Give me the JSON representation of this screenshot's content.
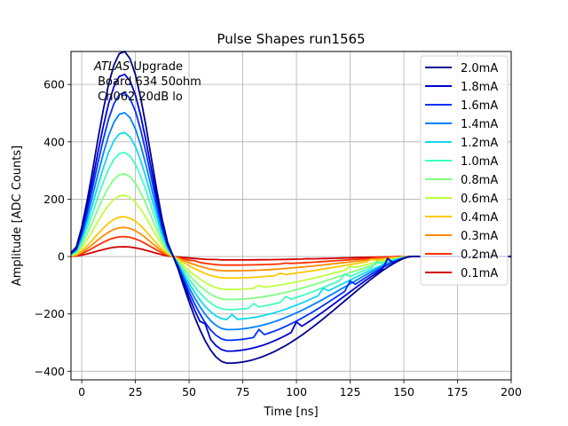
{
  "chart_data": {
    "type": "line",
    "title": "Pulse Shapes run1565",
    "xlabel": "Time [ns]",
    "ylabel": "Amplitude [ADC Counts]",
    "xlim": [
      -5,
      200
    ],
    "ylim": [
      -430,
      715
    ],
    "xticks": [
      0,
      25,
      50,
      75,
      100,
      125,
      150,
      175,
      200
    ],
    "yticks": [
      -400,
      -200,
      0,
      200,
      400,
      600
    ],
    "xtick_labels": [
      "0",
      "25",
      "50",
      "75",
      "100",
      "125",
      "150",
      "175",
      "200"
    ],
    "ytick_labels": [
      "−400",
      "−200",
      "0",
      "200",
      "400",
      "600"
    ],
    "grid": true,
    "legend_position": "top-right",
    "annotation": {
      "italic_part": "ATLAS",
      "line1_rest": " Upgrade",
      "line2": " Board 634 50ohm",
      "line3": " Ch062 20dB lo"
    },
    "x_sampling": {
      "start": -5,
      "end": 200,
      "step": 2.5
    },
    "series": [
      {
        "name": "2.0mA",
        "color": "#00008f",
        "peak": 670,
        "min": -372
      },
      {
        "name": "1.8mA",
        "color": "#0000d4",
        "peak": 595,
        "min": -330
      },
      {
        "name": "1.6mA",
        "color": "#0030ff",
        "peak": 535,
        "min": -292
      },
      {
        "name": "1.4mA",
        "color": "#0080ff",
        "peak": 470,
        "min": -255
      },
      {
        "name": "1.2mA",
        "color": "#10d8ee",
        "peak": 405,
        "min": -220
      },
      {
        "name": "1.0mA",
        "color": "#40ffc0",
        "peak": 340,
        "min": -185
      },
      {
        "name": "0.8mA",
        "color": "#80ff80",
        "peak": 270,
        "min": -150
      },
      {
        "name": "0.6mA",
        "color": "#c0ff40",
        "peak": 200,
        "min": -115
      },
      {
        "name": "0.4mA",
        "color": "#ffc800",
        "peak": 130,
        "min": -75
      },
      {
        "name": "0.3mA",
        "color": "#ff8c00",
        "peak": 95,
        "min": -50
      },
      {
        "name": "0.2mA",
        "color": "#ff3000",
        "peak": 65,
        "min": -30
      },
      {
        "name": "0.1mA",
        "color": "#d40000",
        "peak": 32,
        "min": -12
      }
    ]
  }
}
